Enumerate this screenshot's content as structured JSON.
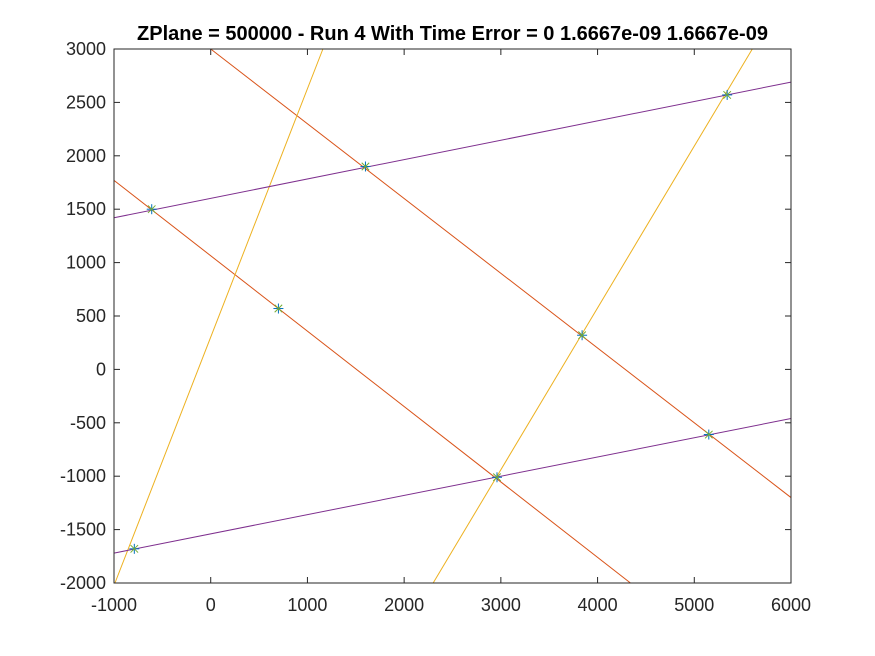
{
  "chart_data": {
    "type": "line",
    "title": "ZPlane = 500000 - Run 4 With Time Error = 0  1.6667e-09  1.6667e-09",
    "xlabel": "",
    "ylabel": "",
    "xlim": [
      -1000,
      6000
    ],
    "ylim": [
      -2000,
      3000
    ],
    "xticks": [
      -1000,
      0,
      1000,
      2000,
      3000,
      4000,
      5000,
      6000
    ],
    "yticks": [
      -2000,
      -1500,
      -1000,
      -500,
      0,
      500,
      1000,
      1500,
      2000,
      2500,
      3000
    ],
    "xtick_labels": [
      "-1000",
      "0",
      "1000",
      "2000",
      "3000",
      "4000",
      "5000",
      "6000"
    ],
    "ytick_labels": [
      "-2000",
      "-1500",
      "-1000",
      "-500",
      "0",
      "500",
      "1000",
      "1500",
      "2000",
      "2500",
      "3000"
    ],
    "grid": false,
    "lines": [
      {
        "color": "#D95319",
        "points": [
          [
            -1000,
            1770
          ],
          [
            4340,
            -2000
          ]
        ]
      },
      {
        "color": "#D95319",
        "points": [
          [
            0,
            3000
          ],
          [
            6000,
            -1200
          ]
        ]
      },
      {
        "color": "#EDB120",
        "points": [
          [
            -990,
            -2000
          ],
          [
            1160,
            3000
          ]
        ]
      },
      {
        "color": "#EDB120",
        "points": [
          [
            2300,
            -2000
          ],
          [
            5600,
            3000
          ]
        ]
      },
      {
        "color": "#7E2F8E",
        "points": [
          [
            -1000,
            1420
          ],
          [
            6000,
            2690
          ]
        ]
      },
      {
        "color": "#7E2F8E",
        "points": [
          [
            -1000,
            -1720
          ],
          [
            6000,
            -460
          ]
        ]
      }
    ],
    "points": [
      [
        -610,
        1500
      ],
      [
        1600,
        1900
      ],
      [
        5340,
        2570
      ],
      [
        700,
        570
      ],
      [
        3840,
        320
      ],
      [
        2960,
        -1010
      ],
      [
        5150,
        -610
      ],
      [
        -790,
        -1680
      ]
    ],
    "marker": "*",
    "marker_colors": [
      "#0072BD",
      "#77AC30"
    ]
  }
}
